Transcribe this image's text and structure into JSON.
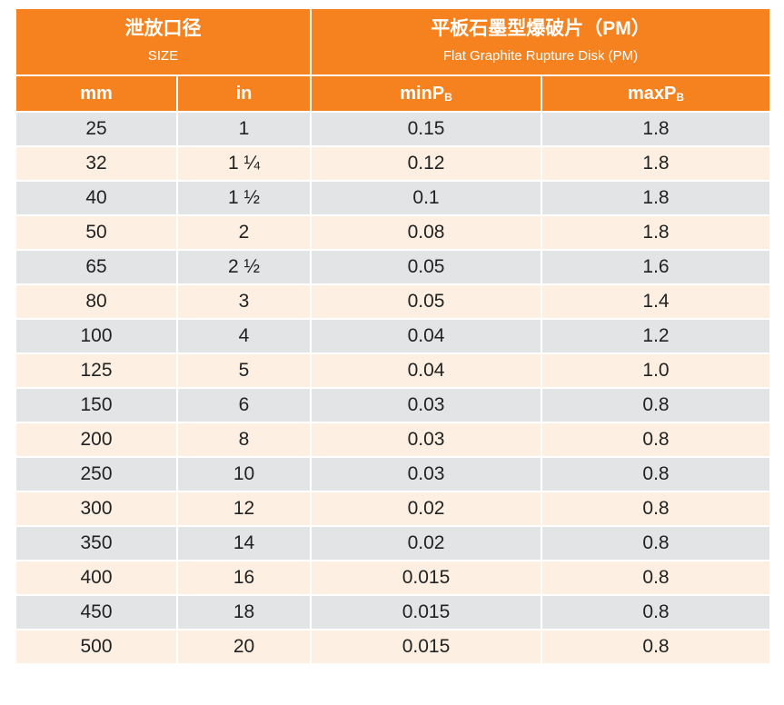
{
  "header": {
    "size_zh": "泄放口径",
    "size_en": "SIZE",
    "product_zh": "平板石墨型爆破片（PM）",
    "product_en": "Flat Graphite Rupture Disk (PM)",
    "col_mm": "mm",
    "col_in": "in",
    "col_min_base": "minP",
    "col_min_sub": "B",
    "col_max_base": "maxP",
    "col_max_sub": "B"
  },
  "colors": {
    "header_bg": "#f5821f",
    "row_gray": "#e3e4e6",
    "row_peach": "#fdf0e3"
  },
  "rows": [
    {
      "mm": "25",
      "in": "1",
      "min": "0.15",
      "max": "1.8"
    },
    {
      "mm": "32",
      "in": "1 ¼",
      "min": "0.12",
      "max": "1.8"
    },
    {
      "mm": "40",
      "in": "1 ½",
      "min": "0.1",
      "max": "1.8"
    },
    {
      "mm": "50",
      "in": "2",
      "min": "0.08",
      "max": "1.8"
    },
    {
      "mm": "65",
      "in": "2 ½",
      "min": "0.05",
      "max": "1.6"
    },
    {
      "mm": "80",
      "in": "3",
      "min": "0.05",
      "max": "1.4"
    },
    {
      "mm": "100",
      "in": "4",
      "min": "0.04",
      "max": "1.2"
    },
    {
      "mm": "125",
      "in": "5",
      "min": "0.04",
      "max": "1.0"
    },
    {
      "mm": "150",
      "in": "6",
      "min": "0.03",
      "max": "0.8"
    },
    {
      "mm": "200",
      "in": "8",
      "min": "0.03",
      "max": "0.8"
    },
    {
      "mm": "250",
      "in": "10",
      "min": "0.03",
      "max": "0.8"
    },
    {
      "mm": "300",
      "in": "12",
      "min": "0.02",
      "max": "0.8"
    },
    {
      "mm": "350",
      "in": "14",
      "min": "0.02",
      "max": "0.8"
    },
    {
      "mm": "400",
      "in": "16",
      "min": "0.015",
      "max": "0.8"
    },
    {
      "mm": "450",
      "in": "18",
      "min": "0.015",
      "max": "0.8"
    },
    {
      "mm": "500",
      "in": "20",
      "min": "0.015",
      "max": "0.8"
    }
  ]
}
